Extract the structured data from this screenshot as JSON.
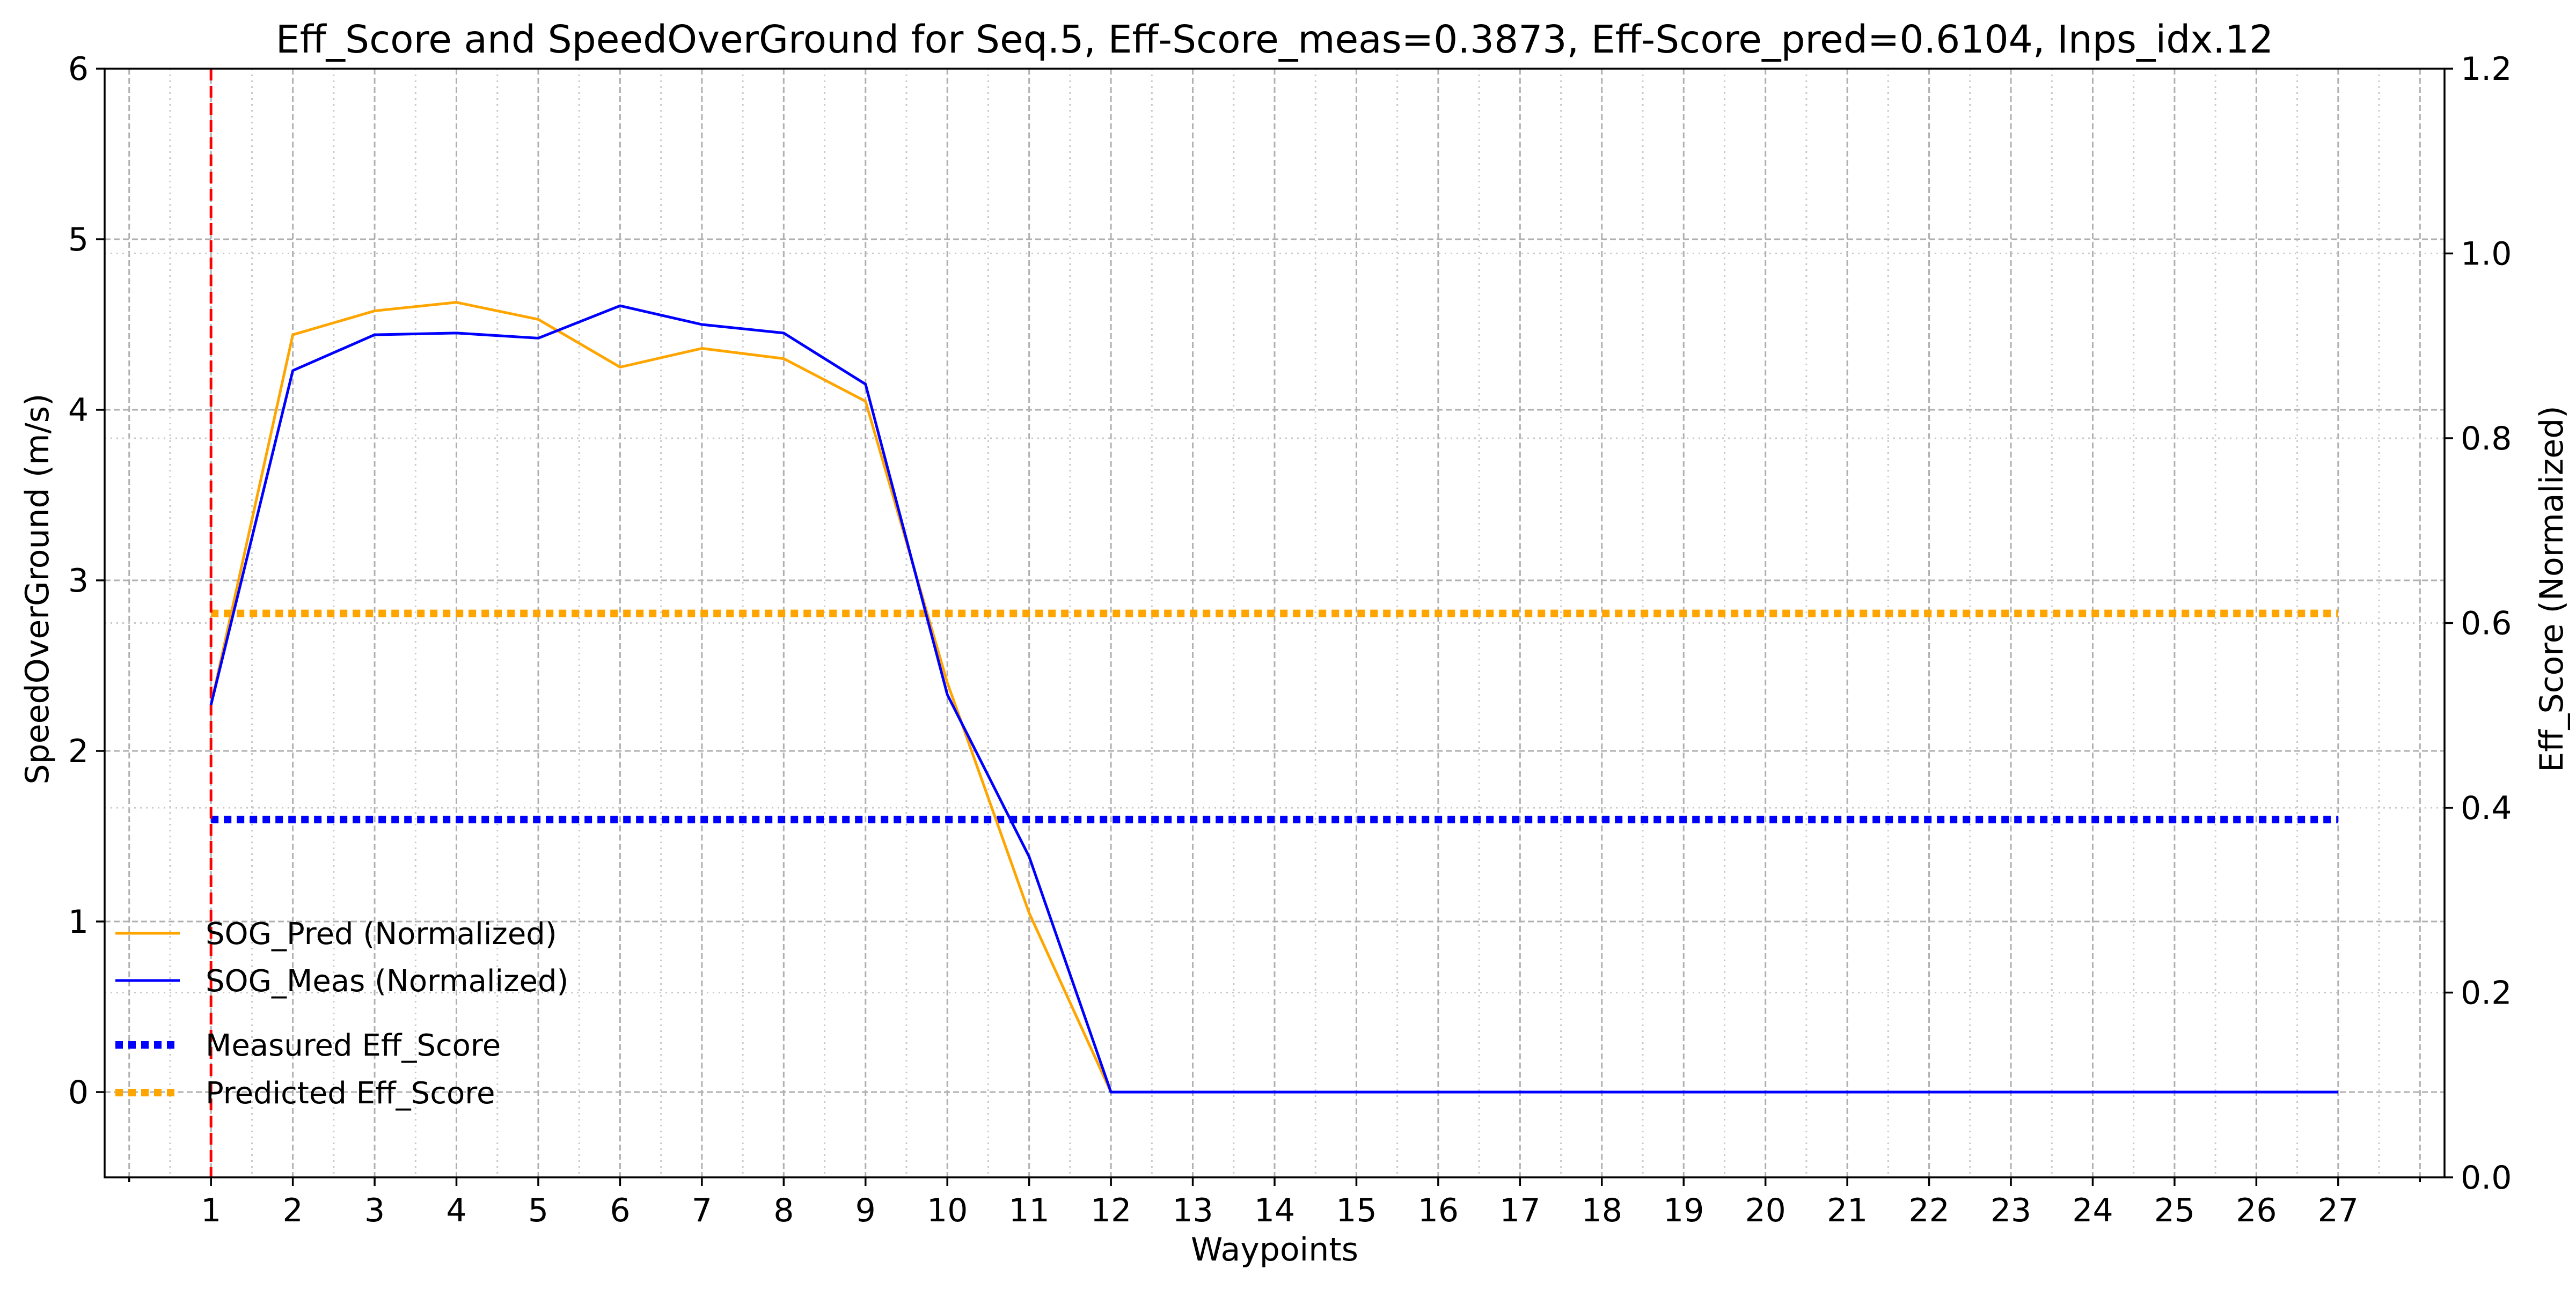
{
  "chart_data": {
    "type": "line",
    "title": "Eff_Score and SpeedOverGround for Seq.5, Eff-Score_meas=0.3873, Eff-Score_pred=0.6104, Inps_idx.12",
    "xlabel": "Waypoints",
    "ylabel_left": "SpeedOverGround (m/s)",
    "ylabel_right": "Eff_Score (Normalized)",
    "x": [
      1,
      2,
      3,
      4,
      5,
      6,
      7,
      8,
      9,
      10,
      11,
      12,
      13,
      14,
      15,
      16,
      17,
      18,
      19,
      20,
      21,
      22,
      23,
      24,
      25,
      26,
      27
    ],
    "xlim": [
      -0.3,
      28.3
    ],
    "ylim_left": [
      -0.5,
      6
    ],
    "ylim_right": [
      0.0,
      1.2
    ],
    "left_ticks": [
      "0",
      "1",
      "2",
      "3",
      "4",
      "5",
      "6"
    ],
    "right_ticks": [
      "0.0",
      "0.2",
      "0.4",
      "0.6",
      "0.8",
      "1.0",
      "1.2"
    ],
    "grid": true,
    "series": [
      {
        "name": "SOG_Pred (Normalized)",
        "axis": "left",
        "style": "solid",
        "color": "#FFA500",
        "values": [
          2.27,
          4.44,
          4.58,
          4.63,
          4.53,
          4.25,
          4.36,
          4.3,
          4.05,
          2.4,
          1.05,
          0,
          0,
          0,
          0,
          0,
          0,
          0,
          0,
          0,
          0,
          0,
          0,
          0,
          0,
          0,
          0
        ]
      },
      {
        "name": "SOG_Meas (Normalized)",
        "axis": "left",
        "style": "solid",
        "color": "#0000FF",
        "values": [
          2.27,
          4.23,
          4.44,
          4.45,
          4.42,
          4.61,
          4.5,
          4.45,
          4.15,
          2.33,
          1.38,
          0,
          0,
          0,
          0,
          0,
          0,
          0,
          0,
          0,
          0,
          0,
          0,
          0,
          0,
          0,
          0
        ]
      },
      {
        "name": "Measured Eff_Score",
        "axis": "right",
        "style": "dotted",
        "color": "#0000FF",
        "value": 0.3873
      },
      {
        "name": "Predicted Eff_Score",
        "axis": "right",
        "style": "dotted",
        "color": "#FFA500",
        "value": 0.6104
      }
    ],
    "vline": {
      "x": 1,
      "color": "#FF0000",
      "style": "dashed"
    },
    "legend_placement": "lower-left"
  }
}
